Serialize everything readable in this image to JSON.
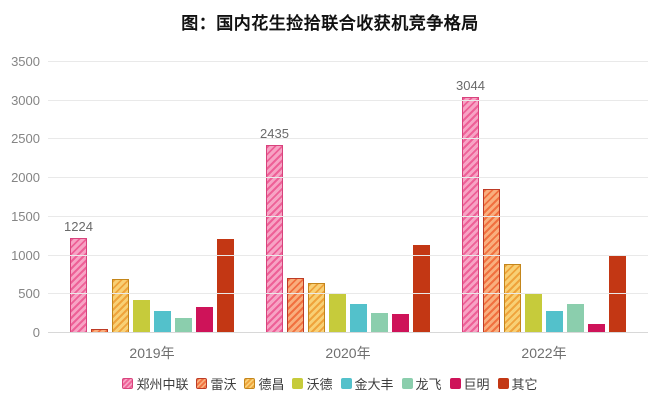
{
  "title": "图：国内花生捡拾联合收获机竞争格局",
  "axis_color": "#858585",
  "grid_color": "#e9e9e9",
  "chart_data": {
    "type": "bar",
    "title": "图：国内花生捡拾联合收获机竞争格局",
    "categories": [
      "2019年",
      "2020年",
      "2022年"
    ],
    "series": [
      {
        "name": "郑州中联",
        "values": [
          1224,
          2435,
          3044
        ],
        "data_labels": [
          "1224",
          "2435",
          "3044"
        ],
        "pattern": "hatch",
        "fill": "#F7A3C4",
        "stripe": "#EE6097",
        "border": "#D8437D"
      },
      {
        "name": "雷沃",
        "values": [
          50,
          710,
          1860
        ],
        "data_labels": null,
        "pattern": "hatch",
        "fill": "#F9AE7D",
        "stripe": "#F1703F",
        "border": "#BD3B26"
      },
      {
        "name": "德昌",
        "values": [
          700,
          640,
          890
        ],
        "data_labels": null,
        "pattern": "hatch",
        "fill": "#F8D075",
        "stripe": "#EFA33B",
        "border": "#C3861B"
      },
      {
        "name": "沃德",
        "values": [
          430,
          520,
          500
        ],
        "data_labels": null,
        "pattern": "solid",
        "fill": "#C6CB3B",
        "stripe": null,
        "border": null
      },
      {
        "name": "金大丰",
        "values": [
          290,
          370,
          280
        ],
        "data_labels": null,
        "pattern": "solid",
        "fill": "#53C1CB",
        "stripe": null,
        "border": null
      },
      {
        "name": "龙飞",
        "values": [
          190,
          260,
          380
        ],
        "data_labels": null,
        "pattern": "solid",
        "fill": "#8BCEAD",
        "stripe": null,
        "border": null
      },
      {
        "name": "巨明",
        "values": [
          340,
          250,
          115
        ],
        "data_labels": null,
        "pattern": "solid",
        "fill": "#CE1359",
        "stripe": null,
        "border": null
      },
      {
        "name": "其它",
        "values": [
          1210,
          1140,
          1000
        ],
        "data_labels": null,
        "pattern": "solid",
        "fill": "#C33714",
        "stripe": null,
        "border": null
      }
    ],
    "ylim": [
      0,
      3500
    ],
    "yticks": [
      0,
      500,
      1000,
      1500,
      2000,
      2500,
      3000,
      3500
    ],
    "grid": true,
    "legend_position": "bottom"
  }
}
